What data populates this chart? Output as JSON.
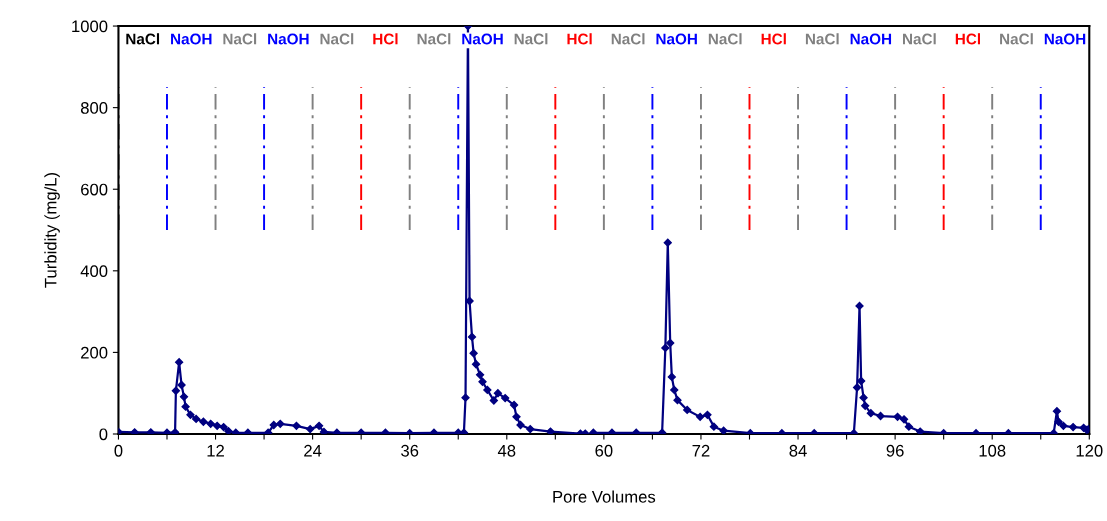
{
  "chart_data": {
    "type": "line",
    "xlabel": "Pore Volumes",
    "ylabel": "Turbidity (mg/L)",
    "xlim": [
      0,
      120
    ],
    "ylim": [
      0,
      1000
    ],
    "xticks": [
      0,
      {
        "value": 6,
        "label": null
      },
      12,
      {
        "value": 18,
        "label": null
      },
      24,
      {
        "value": 30,
        "label": null
      },
      36,
      {
        "value": 42,
        "label": null
      },
      48,
      {
        "value": 54,
        "label": null
      },
      60,
      {
        "value": 66,
        "label": null
      },
      72,
      {
        "value": 78,
        "label": null
      },
      84,
      {
        "value": 90,
        "label": null
      },
      96,
      {
        "value": 102,
        "label": null
      },
      108,
      {
        "value": 114,
        "label": null
      },
      120
    ],
    "yticks": [
      0,
      200,
      400,
      600,
      800,
      1000
    ],
    "grid": false,
    "marker": "diamond",
    "line_style": "solid",
    "series": [
      {
        "color": "#000080",
        "x": [
          0,
          2,
          4,
          6,
          7.0,
          7.1,
          7.5,
          7.8,
          8.1,
          8.3,
          8.9,
          9.6,
          10.5,
          11.4,
          12.2,
          13.0,
          13.6,
          14.5,
          16,
          18.5,
          19.2,
          20,
          22,
          23.7,
          24.8,
          25.4,
          27,
          30,
          33,
          36,
          39,
          42,
          42.7,
          42.9,
          43.2,
          43.4,
          43.7,
          43.9,
          44.2,
          44.7,
          45,
          45.6,
          46.4,
          46.9,
          47.8,
          48.9,
          49.2,
          49.7,
          50.9,
          53.4,
          57.1,
          57.7,
          58.2,
          58.7,
          61,
          64,
          67.2,
          67.6,
          67.9,
          68.2,
          68.4,
          68.7,
          69.1,
          70.3,
          71.9,
          72.8,
          73.6,
          74.8,
          78.1,
          82,
          86,
          90.9,
          91.3,
          91.6,
          91.8,
          92.1,
          92.3,
          93,
          94.2,
          96.3,
          97.1,
          97.7,
          99.1,
          102,
          106,
          110,
          115.6,
          116,
          116.2,
          116.8,
          118,
          119.3,
          119.7,
          119.9
        ],
        "values": [
          5,
          4,
          4,
          3,
          4,
          106,
          176,
          120,
          91,
          67,
          47,
          37,
          30,
          25,
          20,
          17,
          7,
          3,
          3,
          3,
          22,
          25,
          20,
          12,
          20,
          5,
          3,
          3,
          3,
          2,
          3,
          3,
          3,
          89,
          1000,
          326,
          238,
          198,
          171,
          145,
          128,
          108,
          82,
          100,
          88,
          71,
          42,
          22,
          12,
          6,
          1,
          1,
          null,
          3,
          3,
          3,
          3,
          211,
          469,
          223,
          140,
          108,
          83,
          59,
          42,
          47,
          18,
          8,
          2,
          2,
          2,
          2,
          114,
          314,
          130,
          89,
          69,
          51,
          44,
          42,
          36,
          18,
          6,
          2,
          2,
          2,
          2,
          56,
          30,
          20,
          17,
          15,
          10,
          12
        ]
      }
    ],
    "ref_lines": [
      {
        "axis": "x",
        "value": 0,
        "label": "NaCl",
        "color": "#000000",
        "line_style": "dashdot"
      },
      {
        "axis": "x",
        "value": 6,
        "label": "NaOH",
        "color": "#0000ff",
        "line_style": "dashdot"
      },
      {
        "axis": "x",
        "value": 12,
        "label": "NaCl",
        "color": "#808080",
        "line_style": "dashdot"
      },
      {
        "axis": "x",
        "value": 18,
        "label": "NaOH",
        "color": "#0000ff",
        "line_style": "dashdot"
      },
      {
        "axis": "x",
        "value": 24,
        "label": "NaCl",
        "color": "#808080",
        "line_style": "dashdot"
      },
      {
        "axis": "x",
        "value": 30,
        "label": "HCl",
        "color": "#ff0000",
        "line_style": "dashdot"
      },
      {
        "axis": "x",
        "value": 36,
        "label": "NaCl",
        "color": "#808080",
        "line_style": "dashdot"
      },
      {
        "axis": "x",
        "value": 42,
        "label": "NaOH",
        "color": "#0000ff",
        "line_style": "dashdot"
      },
      {
        "axis": "x",
        "value": 48,
        "label": "NaCl",
        "color": "#808080",
        "line_style": "dashdot"
      },
      {
        "axis": "x",
        "value": 54,
        "label": "HCl",
        "color": "#ff0000",
        "line_style": "dashdot"
      },
      {
        "axis": "x",
        "value": 60,
        "label": "NaCl",
        "color": "#808080",
        "line_style": "dashdot"
      },
      {
        "axis": "x",
        "value": 66,
        "label": "NaOH",
        "color": "#0000ff",
        "line_style": "dashdot"
      },
      {
        "axis": "x",
        "value": 72,
        "label": "NaCl",
        "color": "#808080",
        "line_style": "dashdot"
      },
      {
        "axis": "x",
        "value": 78,
        "label": "HCl",
        "color": "#ff0000",
        "line_style": "dashdot"
      },
      {
        "axis": "x",
        "value": 84,
        "label": "NaCl",
        "color": "#808080",
        "line_style": "dashdot"
      },
      {
        "axis": "x",
        "value": 90,
        "label": "NaOH",
        "color": "#0000ff",
        "line_style": "dashdot"
      },
      {
        "axis": "x",
        "value": 96,
        "label": "NaCl",
        "color": "#808080",
        "line_style": "dashdot"
      },
      {
        "axis": "x",
        "value": 102,
        "label": "HCl",
        "color": "#ff0000",
        "line_style": "dashdot"
      },
      {
        "axis": "x",
        "value": 108,
        "label": "NaCl",
        "color": "#808080",
        "line_style": "dashdot"
      },
      {
        "axis": "x",
        "value": 114,
        "label": "NaOH",
        "color": "#0000ff",
        "line_style": "dashdot"
      }
    ],
    "legend": false
  }
}
